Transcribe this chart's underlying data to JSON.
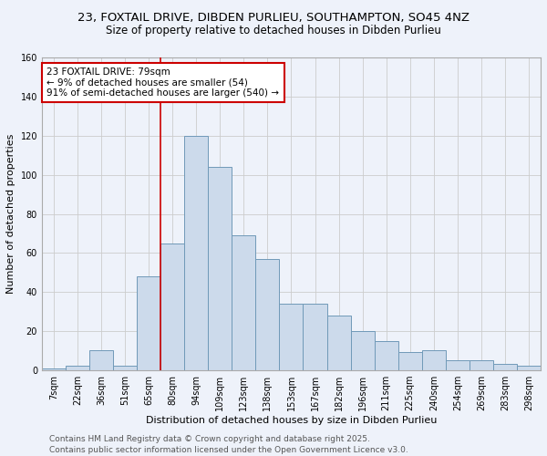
{
  "title_line1": "23, FOXTAIL DRIVE, DIBDEN PURLIEU, SOUTHAMPTON, SO45 4NZ",
  "title_line2": "Size of property relative to detached houses in Dibden Purlieu",
  "xlabel": "Distribution of detached houses by size in Dibden Purlieu",
  "ylabel": "Number of detached properties",
  "categories": [
    "7sqm",
    "22sqm",
    "36sqm",
    "51sqm",
    "65sqm",
    "80sqm",
    "94sqm",
    "109sqm",
    "123sqm",
    "138sqm",
    "153sqm",
    "167sqm",
    "182sqm",
    "196sqm",
    "211sqm",
    "225sqm",
    "240sqm",
    "254sqm",
    "269sqm",
    "283sqm",
    "298sqm"
  ],
  "values": [
    1,
    2,
    10,
    2,
    48,
    65,
    120,
    104,
    69,
    57,
    34,
    34,
    28,
    20,
    15,
    9,
    10,
    5,
    5,
    3,
    2
  ],
  "bar_color": "#ccdaeb",
  "bar_edge_color": "#7099b8",
  "red_line_index": 4.5,
  "annotation_text": "23 FOXTAIL DRIVE: 79sqm\n← 9% of detached houses are smaller (54)\n91% of semi-detached houses are larger (540) →",
  "annotation_box_color": "#ffffff",
  "annotation_box_edge": "#cc0000",
  "ylim": [
    0,
    160
  ],
  "yticks": [
    0,
    20,
    40,
    60,
    80,
    100,
    120,
    140,
    160
  ],
  "grid_color": "#cccccc",
  "background_color": "#eef2fa",
  "footer_line1": "Contains HM Land Registry data © Crown copyright and database right 2025.",
  "footer_line2": "Contains public sector information licensed under the Open Government Licence v3.0.",
  "red_line_color": "#cc0000",
  "title_fontsize": 9.5,
  "subtitle_fontsize": 8.5,
  "axis_label_fontsize": 8,
  "tick_fontsize": 7,
  "annotation_fontsize": 7.5,
  "footer_fontsize": 6.5
}
